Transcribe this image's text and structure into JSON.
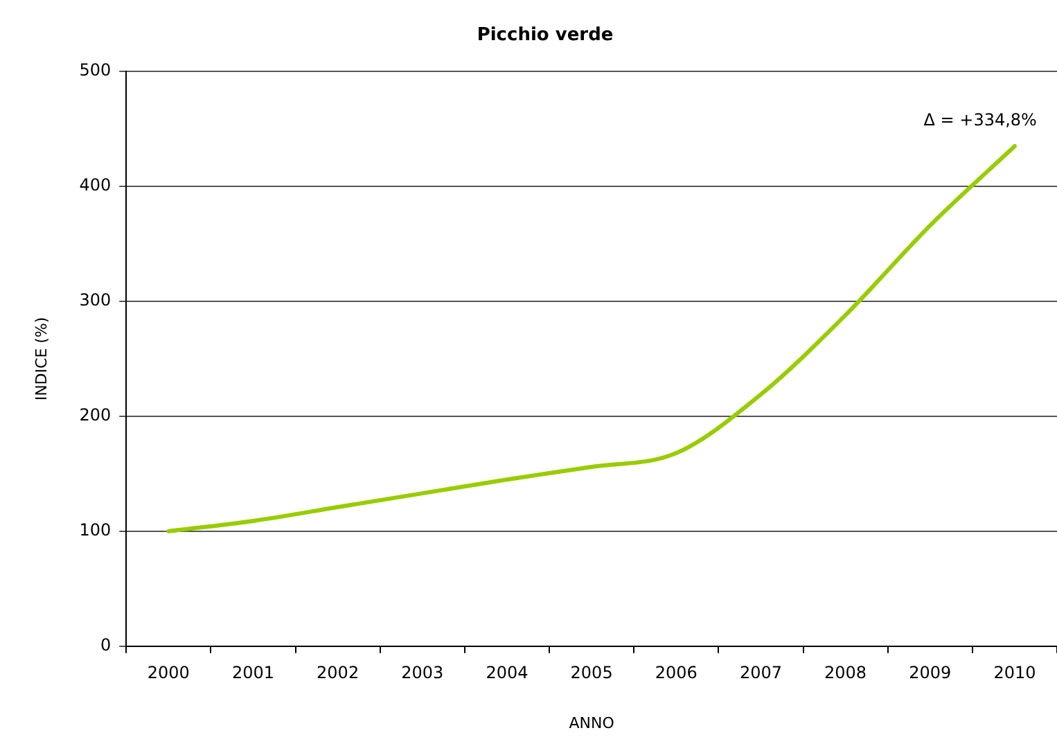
{
  "chart_data": {
    "type": "line",
    "title": "Picchio verde",
    "xlabel": "ANNO",
    "ylabel": "INDICE (%)",
    "categories": [
      "2000",
      "2001",
      "2002",
      "2003",
      "2004",
      "2005",
      "2006",
      "2007",
      "2008",
      "2009",
      "2010"
    ],
    "values": [
      100,
      109,
      121,
      133,
      145,
      156,
      168,
      219,
      288,
      366,
      435
    ],
    "color": "#99cc00",
    "ylim": [
      0,
      500
    ],
    "yticks": [
      0,
      100,
      200,
      300,
      400,
      500
    ],
    "grid": "y",
    "marker": "none",
    "line_style": "solid",
    "annotations": [
      {
        "text": "Δ = +334,8%",
        "x": "2010",
        "y": 435
      }
    ]
  }
}
